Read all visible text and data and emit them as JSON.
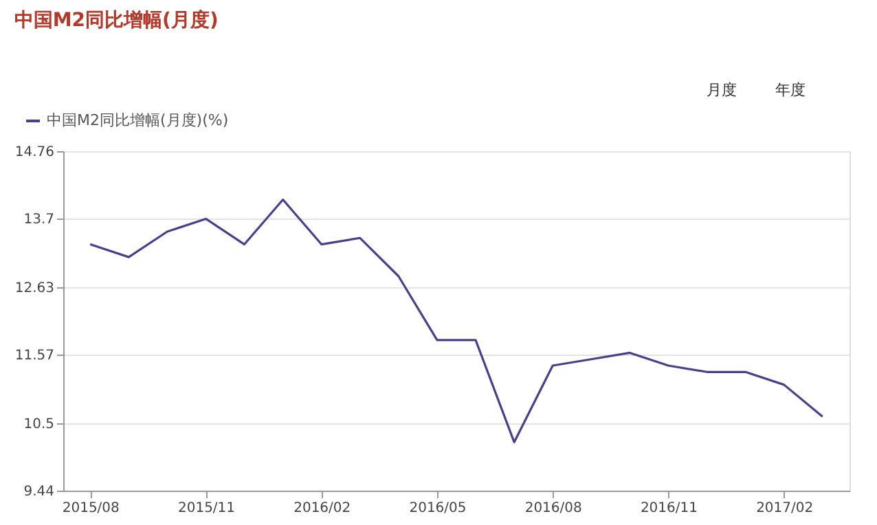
{
  "chart_data": {
    "type": "line",
    "title": "中国M2同比增幅(月度)",
    "categories": [
      "2015/08",
      null,
      null,
      "2015/11",
      null,
      null,
      "2016/02",
      null,
      null,
      "2016/05",
      null,
      null,
      "2016/08",
      null,
      null,
      "2016/11",
      null,
      null,
      "2017/02",
      null
    ],
    "series": [
      {
        "name": "中国M2同比增幅(月度)(%)",
        "color": "#4b3f8c",
        "values": [
          13.3,
          13.1,
          13.5,
          13.7,
          13.3,
          14.0,
          13.3,
          13.4,
          12.8,
          11.8,
          11.8,
          10.2,
          11.4,
          11.5,
          11.6,
          11.4,
          11.3,
          11.3,
          11.1,
          10.6
        ]
      }
    ],
    "ylim": [
      9.44,
      14.76
    ],
    "yticks": [
      9.44,
      10.5,
      11.57,
      12.63,
      13.7,
      14.76
    ],
    "grid": "y",
    "legend": "top left",
    "marker": "none",
    "line_style": "solid",
    "annotations": [
      "月度",
      "年度"
    ]
  }
}
